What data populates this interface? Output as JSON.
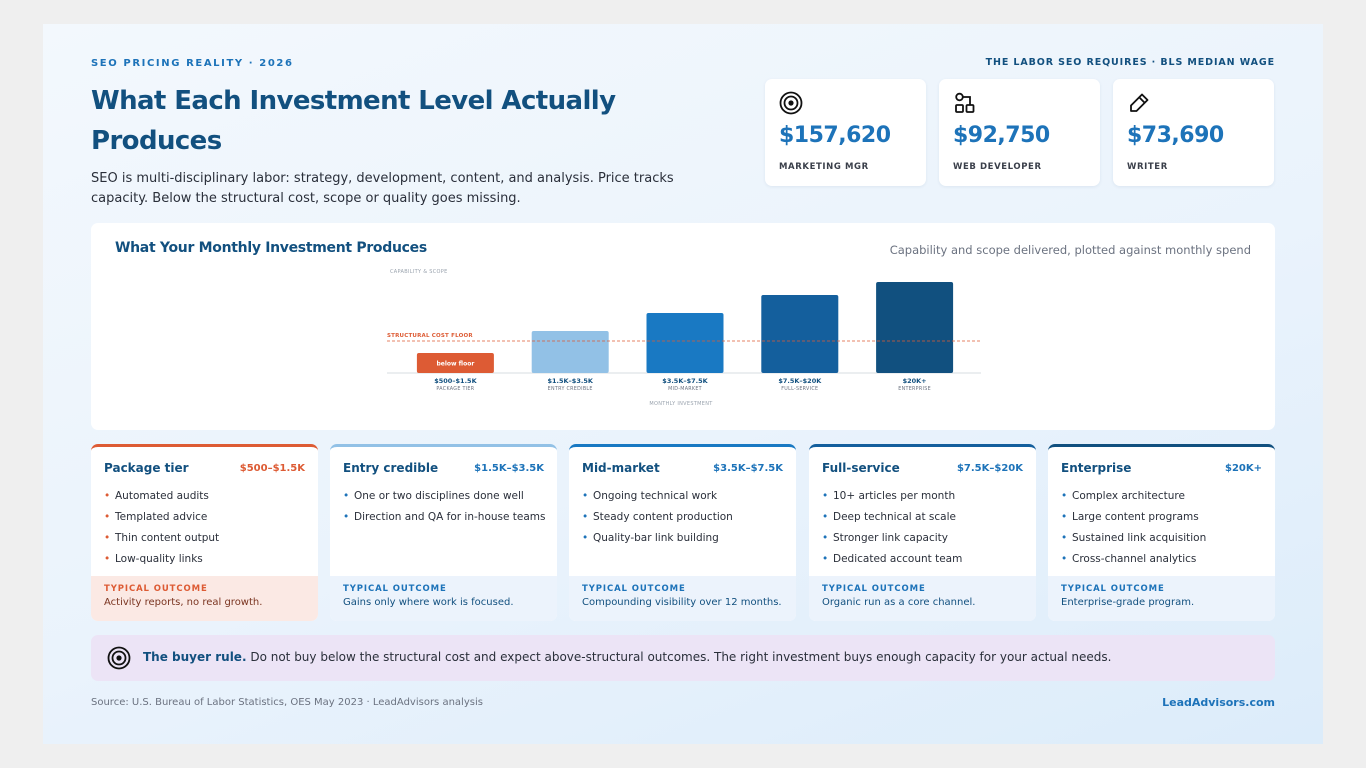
{
  "eyebrow": "SEO PRICING REALITY · 2026",
  "title": "What Each Investment Level Actually Produces",
  "lede": "SEO is multi-disciplinary labor: strategy, development, content, and analysis. Price tracks capacity. Below the structural cost, scope or quality goes missing.",
  "wages": {
    "label": "THE LABOR SEO REQUIRES · BLS MEDIAN WAGE",
    "cards": [
      {
        "amount": "$157,620",
        "role": "MARKETING MGR",
        "icon": "target-icon"
      },
      {
        "amount": "$92,750",
        "role": "WEB DEVELOPER",
        "icon": "flow-icon"
      },
      {
        "amount": "$73,690",
        "role": "WRITER",
        "icon": "pencil-icon"
      }
    ]
  },
  "chart_panel": {
    "title": "What Your Monthly Investment Produces",
    "subtitle": "Capability and scope delivered, plotted against monthly spend"
  },
  "chart_data": {
    "type": "bar",
    "ylabel": "CAPABILITY & SCOPE",
    "xlabel": "MONTHLY INVESTMENT",
    "categories": [
      "$500–$1.5K",
      "$1.5K–$3.5K",
      "$3.5K–$7.5K",
      "$7.5K–$20K",
      "$20K+"
    ],
    "category_sublabels": [
      "PACKAGE TIER",
      "ENTRY CREDIBLE",
      "MID-MARKET",
      "FULL-SERVICE",
      "ENTERPRISE"
    ],
    "values": [
      20,
      42,
      60,
      78,
      91
    ],
    "ylim": [
      0,
      100
    ],
    "bar_labels": [
      "below floor",
      "",
      "",
      "",
      ""
    ],
    "colors": [
      "#dd5b34",
      "#92c1e6",
      "#1979c3",
      "#145f9d",
      "#11507f"
    ],
    "reference_line": {
      "label": "STRUCTURAL COST FLOOR",
      "value": 32,
      "color": "#dd5b34"
    },
    "grid": false
  },
  "tiers": [
    {
      "name": "Package tier",
      "price": "$500–$1.5K",
      "items": [
        "Automated audits",
        "Templated advice",
        "Thin content output",
        "Low-quality links"
      ],
      "outcome_label": "TYPICAL OUTCOME",
      "outcome": "Activity reports, no real growth."
    },
    {
      "name": "Entry credible",
      "price": "$1.5K–$3.5K",
      "items": [
        "One or two disciplines done well",
        "Direction and QA for in-house teams"
      ],
      "outcome_label": "TYPICAL OUTCOME",
      "outcome": "Gains only where work is focused."
    },
    {
      "name": "Mid-market",
      "price": "$3.5K–$7.5K",
      "items": [
        "Ongoing technical work",
        "Steady content production",
        "Quality-bar link building"
      ],
      "outcome_label": "TYPICAL OUTCOME",
      "outcome": "Compounding visibility over 12 months."
    },
    {
      "name": "Full-service",
      "price": "$7.5K–$20K",
      "items": [
        "10+ articles per month",
        "Deep technical at scale",
        "Stronger link capacity",
        "Dedicated account team"
      ],
      "outcome_label": "TYPICAL OUTCOME",
      "outcome": "Organic run as a core channel."
    },
    {
      "name": "Enterprise",
      "price": "$20K+",
      "items": [
        "Complex architecture",
        "Large content programs",
        "Sustained link acquisition",
        "Cross-channel analytics"
      ],
      "outcome_label": "TYPICAL OUTCOME",
      "outcome": "Enterprise-grade program."
    }
  ],
  "rule": {
    "lead": "The buyer rule.",
    "text": " Do not buy below the structural cost and expect above-structural outcomes. The right investment buys enough capacity for your actual needs."
  },
  "source": "Source: U.S. Bureau of Labor Statistics, OES May 2023 · LeadAdvisors analysis",
  "brand": "LeadAdvisors.com"
}
